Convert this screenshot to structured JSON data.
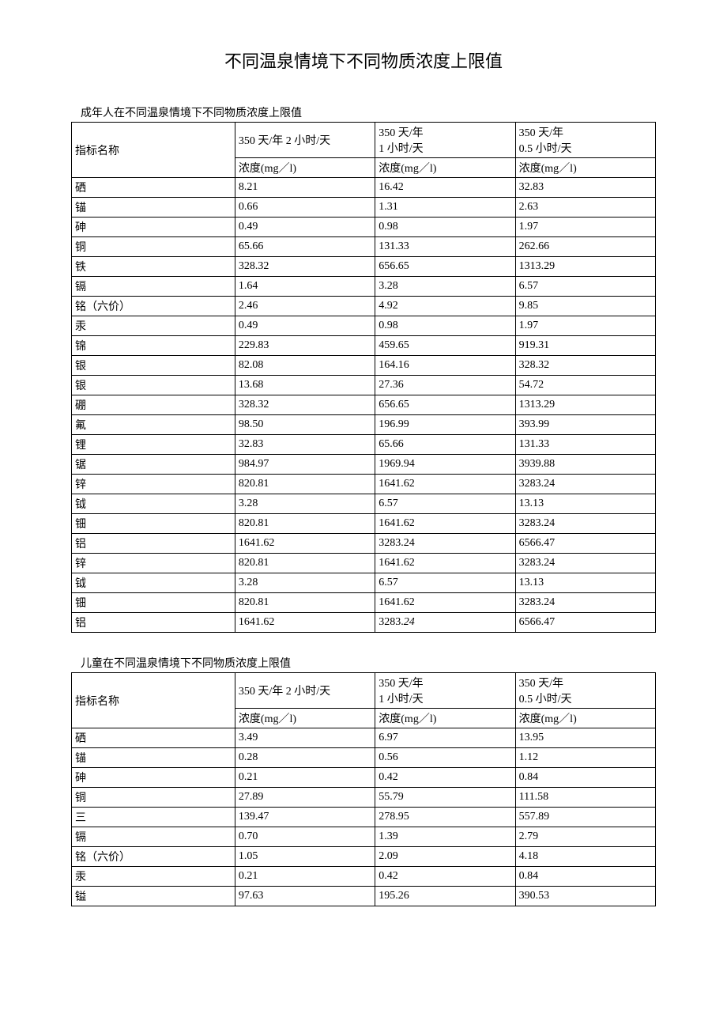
{
  "page_title": "不同温泉情境下不同物质浓度上限值",
  "table1": {
    "caption": "成年人在不同温泉情境下不同物质浓度上限值",
    "header_col0": "指标名称",
    "header_col1": "350 天/年 2 小时/天",
    "header_col2_line1": "350 天/年",
    "header_col2_line2": "1 小时/天",
    "header_col3_line1": "350 天/年",
    "header_col3_line2": "0.5 小时/天",
    "subheader": "浓度(mg／l)",
    "rows": [
      {
        "name": "硒",
        "c1": "8.21",
        "c2": "16.42",
        "c3": "32.83"
      },
      {
        "name": "锚",
        "c1": "0.66",
        "c2": "1.31",
        "c3": "2.63"
      },
      {
        "name": "砷",
        "c1": "0.49",
        "c2": "0.98",
        "c3": "1.97"
      },
      {
        "name": "铜",
        "c1": "65.66",
        "c2": "131.33",
        "c3": "262.66"
      },
      {
        "name": "铁",
        "c1": "328.32",
        "c2": "656.65",
        "c3": "1313.29"
      },
      {
        "name": "镉",
        "c1": "1.64",
        "c2": "3.28",
        "c3": "6.57"
      },
      {
        "name": "铭（六价）",
        "c1": "2.46",
        "c2": "4.92",
        "c3": "9.85"
      },
      {
        "name": "汞",
        "c1": "0.49",
        "c2": "0.98",
        "c3": "1.97"
      },
      {
        "name": "锦",
        "c1": "229.83",
        "c2": "459.65",
        "c3": "919.31"
      },
      {
        "name": "银",
        "c1": "82.08",
        "c2": "164.16",
        "c3": "328.32"
      },
      {
        "name": "银",
        "c1": "13.68",
        "c2": "27.36",
        "c3": "54.72"
      },
      {
        "name": "硼",
        "c1": "328.32",
        "c2": "656.65",
        "c3": "1313.29"
      },
      {
        "name": "氟",
        "c1": "98.50",
        "c2": "196.99",
        "c3": "393.99"
      },
      {
        "name": "锂",
        "c1": "32.83",
        "c2": "65.66",
        "c3": "131.33"
      },
      {
        "name": "锯",
        "c1": "984.97",
        "c2": "1969.94",
        "c3": "3939.88"
      },
      {
        "name": "锌",
        "c1": "820.81",
        "c2": "1641.62",
        "c3": "3283.24"
      },
      {
        "name": "钺",
        "c1": "3.28",
        "c2": "6.57",
        "c3": "13.13"
      },
      {
        "name": "钿",
        "c1": "820.81",
        "c2": "1641.62",
        "c3": "3283.24"
      },
      {
        "name": "铝",
        "c1": "1641.62",
        "c2": "3283.24",
        "c3": "6566.47"
      },
      {
        "name": "锌",
        "c1": "820.81",
        "c2": "1641.62",
        "c3": "3283.24"
      },
      {
        "name": "钺",
        "c1": "3.28",
        "c2": "6.57",
        "c3": "13.13"
      },
      {
        "name": "钿",
        "c1": "820.81",
        "c2": "1641.62",
        "c3": "3283.24"
      },
      {
        "name": "铝",
        "c1": "1641.62",
        "c2": "3283.24",
        "c2_italic": true,
        "c3": "6566.47"
      }
    ]
  },
  "table2": {
    "caption": "儿童在不同温泉情境下不同物质浓度上限值",
    "header_col0": "指标名称",
    "header_col1": "350 天/年 2 小时/天",
    "header_col2_line1": "350 天/年",
    "header_col2_line2": "1 小时/天",
    "header_col3_line1": "350 天/年",
    "header_col3_line2": "0.5 小时/天",
    "subheader": "浓度(mg／l)",
    "rows": [
      {
        "name": "硒",
        "c1": "3.49",
        "c2": "6.97",
        "c3": "13.95"
      },
      {
        "name": "锚",
        "c1": "0.28",
        "c2": "0.56",
        "c3": "1.12"
      },
      {
        "name": "砷",
        "c1": "0.21",
        "c2": "0.42",
        "c3": "0.84"
      },
      {
        "name": "铜",
        "c1": "27.89",
        "c2": "55.79",
        "c3": "111.58"
      },
      {
        "name": "三",
        "c1": "139.47",
        "c2": "278.95",
        "c3": "557.89"
      },
      {
        "name": "镉",
        "c1": "0.70",
        "c2": "1.39",
        "c3": "2.79"
      },
      {
        "name": "铭（六价）",
        "c1": "1.05",
        "c2": "2.09",
        "c3": "4.18"
      },
      {
        "name": "汞",
        "c1": "0.21",
        "c2": "0.42",
        "c3": "0.84"
      },
      {
        "name": "镒",
        "c1": "97.63",
        "c2": "195.26",
        "c3": "390.53"
      }
    ]
  }
}
